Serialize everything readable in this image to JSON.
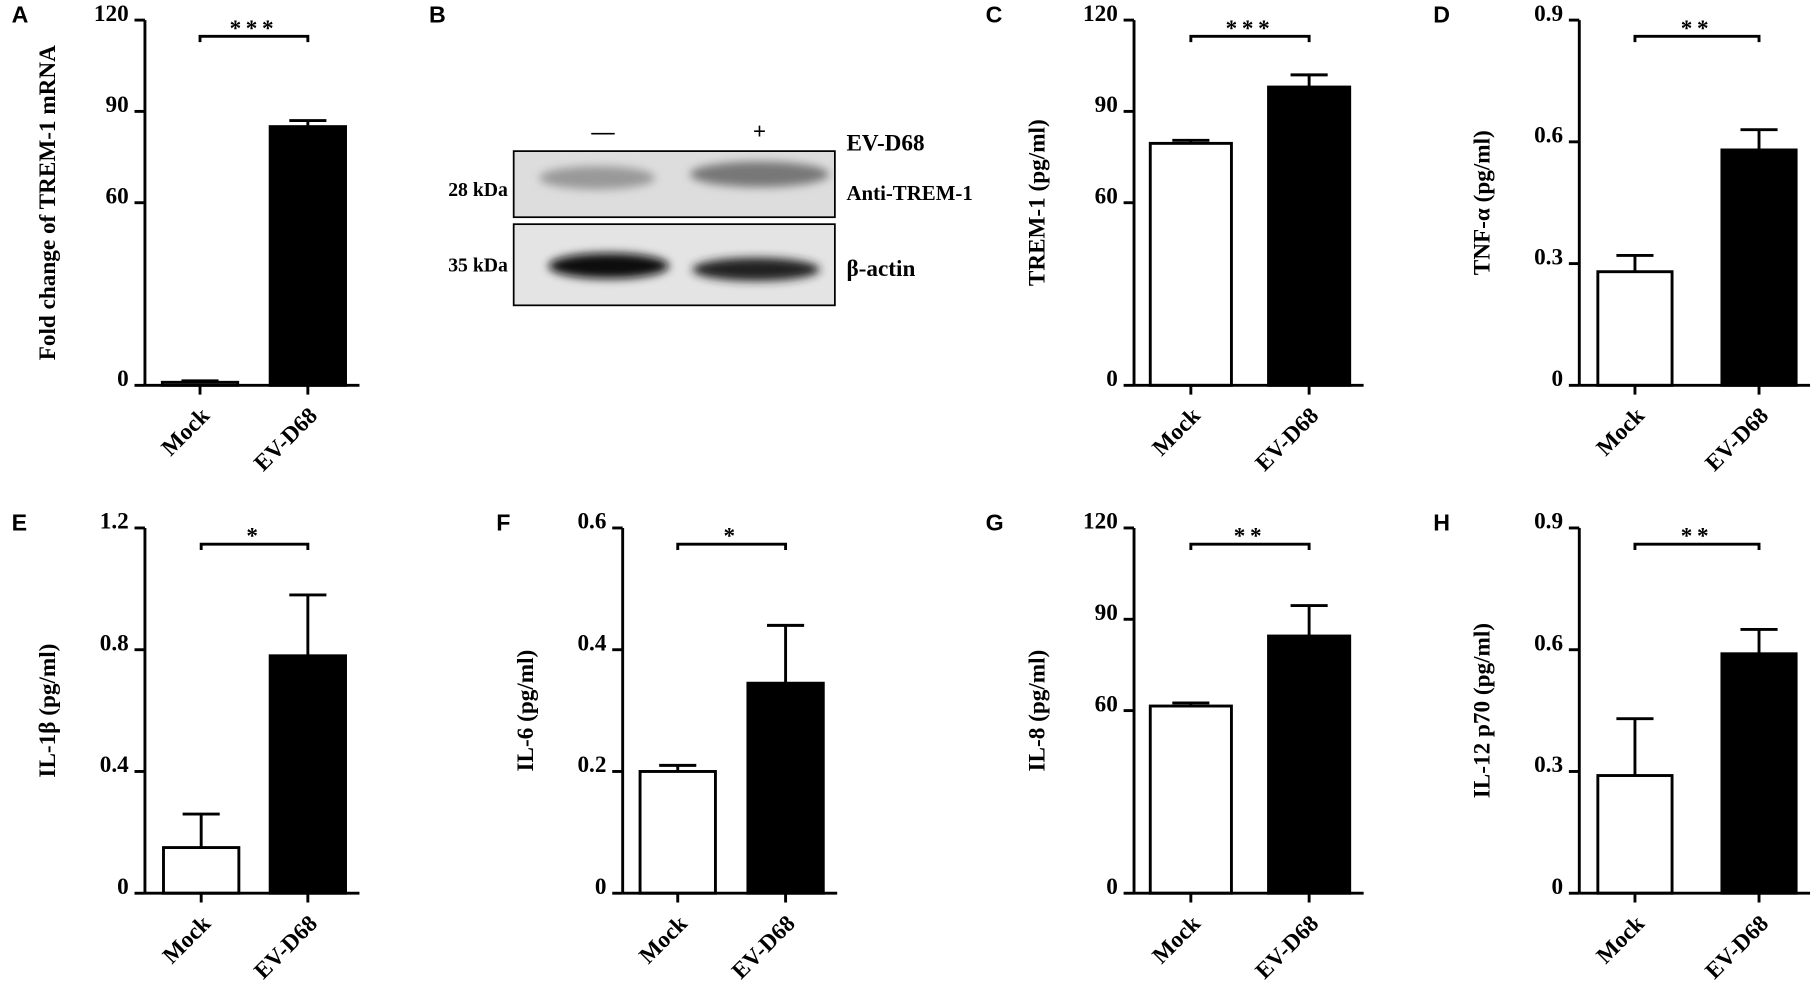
{
  "chart_data": [
    {
      "type": "bar",
      "panel_label": "A",
      "ylabel": "Fold change of TREM-1 mRNA",
      "categories": [
        "Mock",
        "EV-D68"
      ],
      "values": [
        1,
        85
      ],
      "errors": [
        0.5,
        2
      ],
      "colors": [
        "#ffffff",
        "#000000"
      ],
      "ylim": [
        0,
        120
      ],
      "yticks": [
        0,
        60,
        90,
        120
      ],
      "significance": "***"
    },
    {
      "type": "bar",
      "panel_label": "C",
      "ylabel": "TREM-1 (pg/ml)",
      "categories": [
        "Mock",
        "EV-D68"
      ],
      "values": [
        79.5,
        98
      ],
      "errors": [
        1,
        4
      ],
      "colors": [
        "#ffffff",
        "#000000"
      ],
      "ylim": [
        0,
        120
      ],
      "yticks": [
        0,
        60,
        90,
        120
      ],
      "significance": "***"
    },
    {
      "type": "bar",
      "panel_label": "D",
      "ylabel": "TNF-α (pg/ml)",
      "categories": [
        "Mock",
        "EV-D68"
      ],
      "values": [
        0.28,
        0.58
      ],
      "errors": [
        0.04,
        0.05
      ],
      "colors": [
        "#ffffff",
        "#000000"
      ],
      "ylim": [
        0,
        0.9
      ],
      "yticks": [
        0,
        0.3,
        0.6,
        0.9
      ],
      "significance": "**"
    },
    {
      "type": "bar",
      "panel_label": "E",
      "ylabel": "IL-1β (pg/ml)",
      "categories": [
        "Mock",
        "EV-D68"
      ],
      "values": [
        0.15,
        0.78
      ],
      "errors": [
        0.11,
        0.2
      ],
      "colors": [
        "#ffffff",
        "#000000"
      ],
      "ylim": [
        0,
        1.2
      ],
      "yticks": [
        0,
        0.4,
        0.8,
        1.2
      ],
      "significance": "*"
    },
    {
      "type": "bar",
      "panel_label": "F",
      "ylabel": "IL-6 (pg/ml)",
      "categories": [
        "Mock",
        "EV-D68"
      ],
      "values": [
        0.2,
        0.345
      ],
      "errors": [
        0.01,
        0.095
      ],
      "colors": [
        "#ffffff",
        "#000000"
      ],
      "ylim": [
        0,
        0.6
      ],
      "yticks": [
        0,
        0.2,
        0.4,
        0.6
      ],
      "significance": "*"
    },
    {
      "type": "bar",
      "panel_label": "G",
      "ylabel": "IL-8  (pg/ml)",
      "categories": [
        "Mock",
        "EV-D68"
      ],
      "values": [
        61.5,
        84.5
      ],
      "errors": [
        1,
        10
      ],
      "colors": [
        "#ffffff",
        "#000000"
      ],
      "ylim": [
        0,
        120
      ],
      "yticks": [
        0,
        60,
        90,
        120
      ],
      "significance": "**"
    },
    {
      "type": "bar",
      "panel_label": "H",
      "ylabel": "IL-12 p70 (pg/ml)",
      "categories": [
        "Mock",
        "EV-D68"
      ],
      "values": [
        0.29,
        0.59
      ],
      "errors": [
        0.14,
        0.06
      ],
      "colors": [
        "#ffffff",
        "#000000"
      ],
      "ylim": [
        0,
        0.9
      ],
      "yticks": [
        0,
        0.3,
        0.6,
        0.9
      ],
      "significance": "**"
    }
  ],
  "western_blot": {
    "panel_label": "B",
    "columns": [
      "—",
      "+"
    ],
    "treatment": "EV-D68",
    "rows": [
      {
        "size": "28 kDa",
        "label": "Anti-TREM-1"
      },
      {
        "size": "35 kDa",
        "label": "β-actin"
      }
    ]
  }
}
